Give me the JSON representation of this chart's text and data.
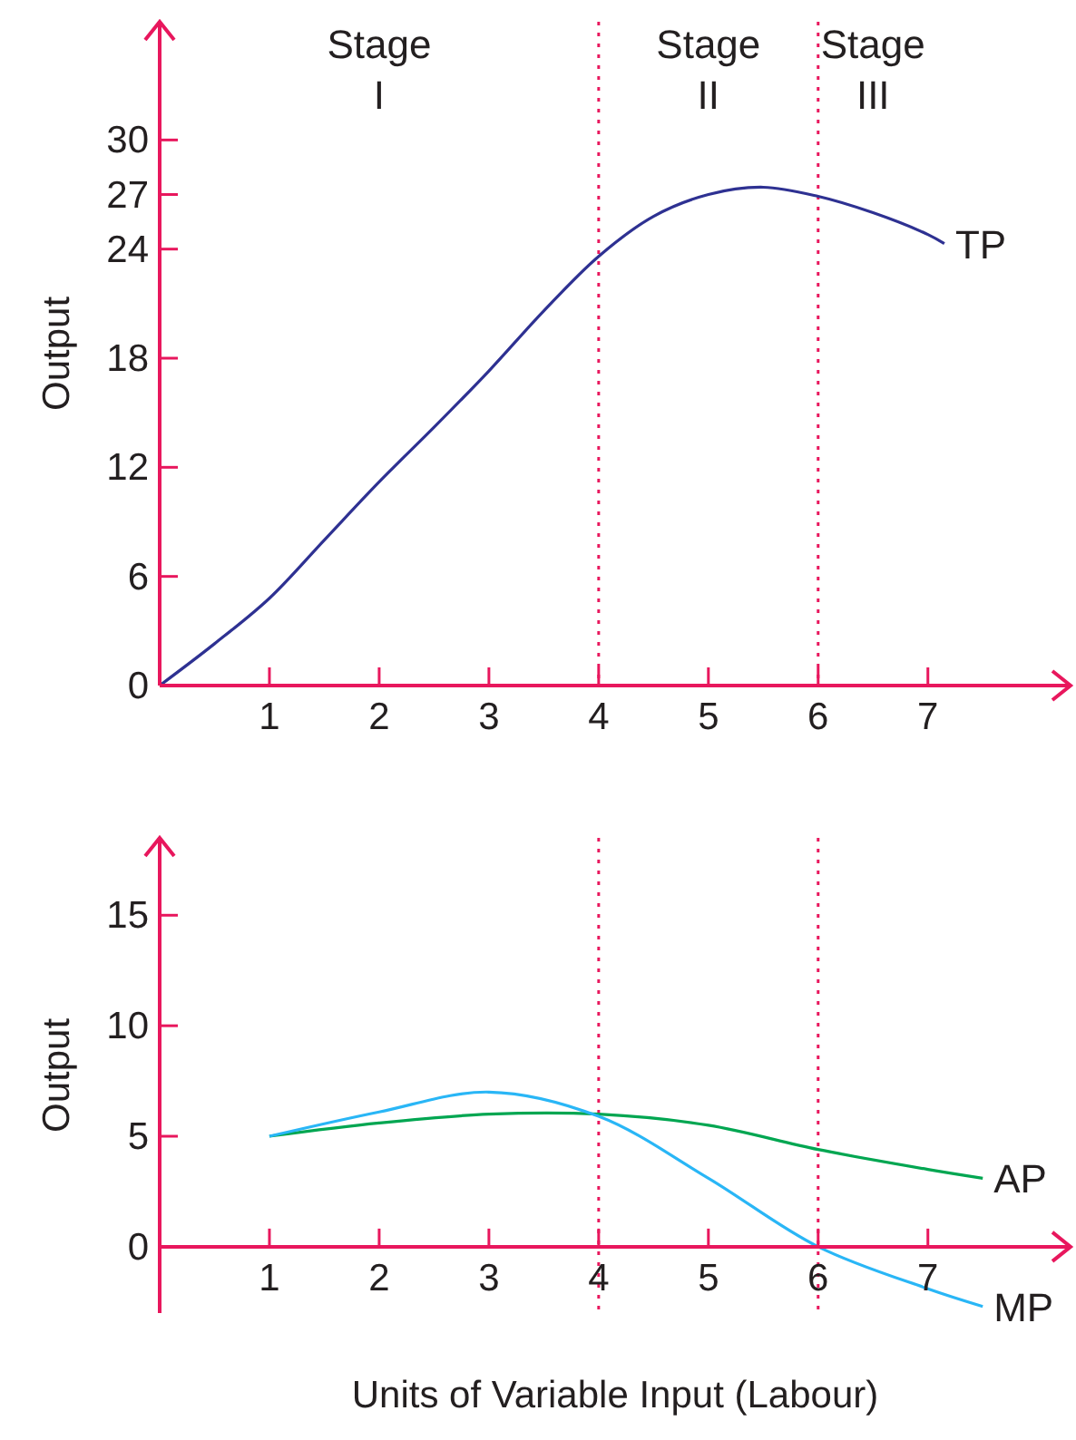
{
  "chart_data": [
    {
      "type": "line",
      "ylabel": "Output",
      "xlim": [
        0,
        8.3
      ],
      "ylim": [
        0,
        36.5
      ],
      "xticks": [
        1,
        2,
        3,
        4,
        5,
        6,
        7
      ],
      "yticks": [
        0,
        6,
        12,
        18,
        24,
        27,
        30
      ],
      "grid": false,
      "line_style": "solid",
      "marker": "none",
      "series": [
        {
          "name": "TP",
          "color": "#2e3192",
          "x": [
            0,
            0.5,
            1,
            1.5,
            2,
            2.5,
            3,
            3.5,
            4,
            4.5,
            5,
            5.5,
            6,
            6.5,
            7,
            7.15
          ],
          "values": [
            0,
            2.3,
            4.8,
            8,
            11.2,
            14.2,
            17.3,
            20.6,
            23.6,
            25.8,
            27,
            27.4,
            26.9,
            26,
            24.8,
            24.3
          ]
        }
      ],
      "ref_lines": [
        {
          "axis": "x",
          "value": 4,
          "color": "#e8175d",
          "line_style": "dotted"
        },
        {
          "axis": "x",
          "value": 6,
          "color": "#e8175d",
          "line_style": "dotted"
        }
      ],
      "annotations": [
        "Stage I",
        "Stage II",
        "Stage III"
      ]
    },
    {
      "type": "line",
      "ylabel": "Output",
      "xlabel": "Units of Variable Input (Labour)",
      "xlim": [
        0,
        8.3
      ],
      "ylim": [
        -3,
        18.5
      ],
      "xticks": [
        1,
        2,
        3,
        4,
        5,
        6,
        7
      ],
      "yticks": [
        0,
        5,
        10,
        15
      ],
      "grid": false,
      "line_style": "solid",
      "marker": "none",
      "series": [
        {
          "name": "AP",
          "color": "#00a651",
          "x": [
            1,
            2,
            3,
            4,
            5,
            6,
            7,
            7.5
          ],
          "values": [
            5,
            5.6,
            6,
            6,
            5.5,
            4.4,
            3.5,
            3.1
          ]
        },
        {
          "name": "MP",
          "color": "#29b6f6",
          "x": [
            1,
            2,
            3,
            4,
            5,
            6,
            7,
            7.5
          ],
          "values": [
            5,
            6.1,
            7,
            5.9,
            3.1,
            0,
            -1.9,
            -2.7
          ]
        }
      ],
      "ref_lines": [
        {
          "axis": "x",
          "value": 4,
          "color": "#e8175d",
          "line_style": "dotted"
        },
        {
          "axis": "x",
          "value": 6,
          "color": "#e8175d",
          "line_style": "dotted"
        }
      ]
    }
  ]
}
